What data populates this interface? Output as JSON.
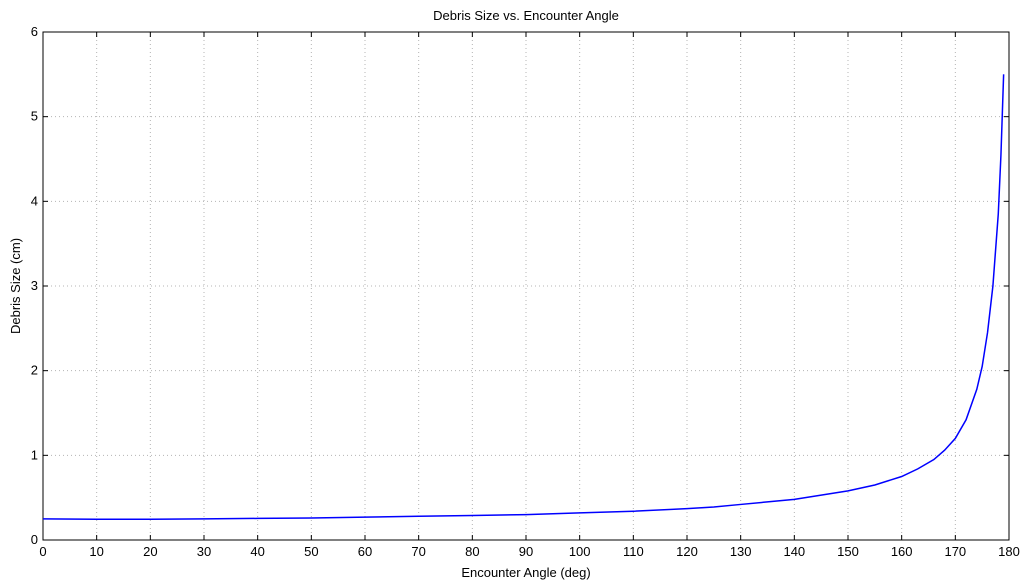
{
  "chart_data": {
    "type": "line",
    "title": "Debris Size vs. Encounter Angle",
    "xlabel": "Encounter Angle (deg)",
    "ylabel": "Debris Size (cm)",
    "xlim": [
      0,
      180
    ],
    "ylim": [
      0,
      6
    ],
    "xticks": [
      "0",
      "10",
      "20",
      "30",
      "40",
      "50",
      "60",
      "70",
      "80",
      "90",
      "100",
      "110",
      "120",
      "130",
      "140",
      "150",
      "160",
      "170",
      "180"
    ],
    "yticks": [
      "0",
      "1",
      "2",
      "3",
      "4",
      "5",
      "6"
    ],
    "grid": true,
    "line_color": "#0000ff",
    "series": [
      {
        "x": [
          0,
          10,
          20,
          30,
          40,
          50,
          60,
          70,
          80,
          90,
          100,
          110,
          120,
          125,
          130,
          135,
          140,
          145,
          150,
          155,
          160,
          163,
          166,
          168,
          170,
          172,
          174,
          175,
          176,
          177,
          178,
          178.5,
          179
        ],
        "y": [
          0.25,
          0.245,
          0.245,
          0.25,
          0.255,
          0.26,
          0.27,
          0.28,
          0.29,
          0.3,
          0.32,
          0.34,
          0.37,
          0.39,
          0.42,
          0.45,
          0.48,
          0.53,
          0.58,
          0.65,
          0.75,
          0.84,
          0.95,
          1.06,
          1.2,
          1.42,
          1.78,
          2.05,
          2.45,
          3.0,
          3.85,
          4.55,
          5.5
        ]
      }
    ]
  }
}
